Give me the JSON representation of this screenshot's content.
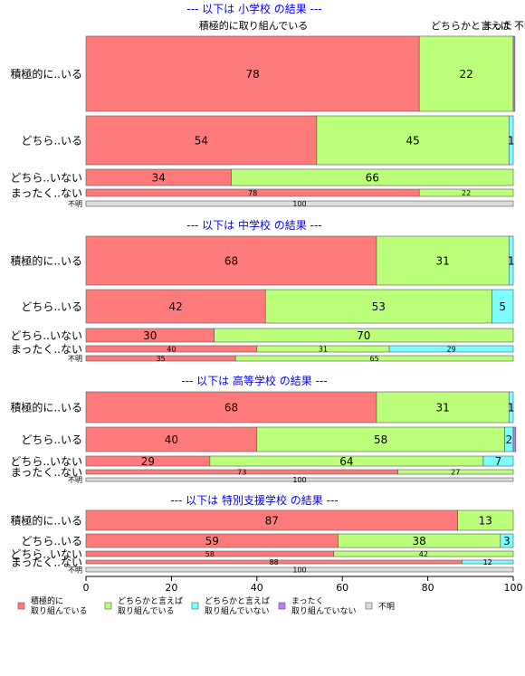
{
  "chart_data": {
    "type": "bar",
    "orientation": "horizontal",
    "stacked": true,
    "variable_bar_width": true,
    "xlim": [
      0,
      100
    ],
    "x_ticks": [
      "0",
      "20",
      "40",
      "60",
      "80",
      "100"
    ],
    "top_labels": [
      "積極的に取り組んでいる",
      "どちらかと言えば",
      "まった",
      "不明"
    ],
    "series": [
      {
        "name": "積極的に\n取り組んでいる",
        "color": "#FF7B7B"
      },
      {
        "name": "どちらかと言えば\n取り組んでいる",
        "color": "#BBFF7B"
      },
      {
        "name": "どちらかと言えば\n取り組んでいない",
        "color": "#7BFFFF"
      },
      {
        "name": "まったく\n取り組んでいない",
        "color": "#BB7BFF"
      },
      {
        "name": "不明",
        "color": "#DDDDDD"
      }
    ],
    "panels": [
      {
        "title": "--- 以下は 小学校 の結果 ---",
        "rows": [
          {
            "label": "積極的に..いる",
            "values": [
              78,
              22,
              0,
              0.4,
              0
            ],
            "labels": [
              "78",
              "22",
              "",
              "",
              ""
            ]
          },
          {
            "label": "どちら..いる",
            "values": [
              54,
              45,
              1,
              0,
              0
            ],
            "labels": [
              "54",
              "45",
              "1",
              "",
              ""
            ]
          },
          {
            "label": "どちら..いない",
            "values": [
              34,
              66,
              0,
              0,
              0
            ],
            "labels": [
              "34",
              "66",
              "",
              "",
              ""
            ]
          },
          {
            "label": "まったく..ない",
            "values": [
              78,
              22,
              0,
              0,
              0
            ],
            "labels": [
              "78",
              "22",
              "",
              "",
              ""
            ]
          },
          {
            "label": "不明",
            "values": [
              0,
              0,
              0,
              0,
              100
            ],
            "labels": [
              "",
              "",
              "",
              "",
              "100"
            ]
          }
        ]
      },
      {
        "title": "--- 以下は 中学校 の結果 ---",
        "rows": [
          {
            "label": "積極的に..いる",
            "values": [
              68,
              31,
              1,
              0,
              0
            ],
            "labels": [
              "68",
              "31",
              "1",
              "",
              ""
            ]
          },
          {
            "label": "どちら..いる",
            "values": [
              42,
              53,
              5,
              0,
              0
            ],
            "labels": [
              "42",
              "53",
              "5",
              "",
              ""
            ]
          },
          {
            "label": "どちら..いない",
            "values": [
              30,
              70,
              0,
              0,
              0
            ],
            "labels": [
              "30",
              "70",
              "",
              "",
              ""
            ]
          },
          {
            "label": "まったく..ない",
            "values": [
              40,
              31,
              29,
              0,
              0
            ],
            "labels": [
              "40",
              "31",
              "29",
              "",
              ""
            ]
          },
          {
            "label": "不明",
            "values": [
              35,
              65,
              0,
              0,
              0
            ],
            "labels": [
              "35",
              "65",
              "",
              "",
              ""
            ]
          }
        ]
      },
      {
        "title": "--- 以下は 高等学校 の結果 ---",
        "rows": [
          {
            "label": "積極的に..いる",
            "values": [
              68,
              31,
              1,
              0,
              0
            ],
            "labels": [
              "68",
              "31",
              "1",
              "",
              ""
            ]
          },
          {
            "label": "どちら..いる",
            "values": [
              40,
              58,
              2,
              0.6,
              0
            ],
            "labels": [
              "40",
              "58",
              "2",
              "",
              ""
            ]
          },
          {
            "label": "どちら..いない",
            "values": [
              29,
              64,
              7,
              0,
              0
            ],
            "labels": [
              "29",
              "64",
              "7",
              "",
              ""
            ]
          },
          {
            "label": "まったく..ない",
            "values": [
              73,
              27,
              0,
              0,
              0
            ],
            "labels": [
              "73",
              "27",
              "",
              "",
              ""
            ]
          },
          {
            "label": "不明",
            "values": [
              0,
              0,
              0,
              0,
              100
            ],
            "labels": [
              "",
              "",
              "",
              "",
              "100"
            ]
          }
        ]
      },
      {
        "title": "--- 以下は 特別支援学校 の結果 ---",
        "rows": [
          {
            "label": "積極的に..いる",
            "values": [
              87,
              13,
              0,
              0,
              0
            ],
            "labels": [
              "87",
              "13",
              "",
              "",
              ""
            ]
          },
          {
            "label": "どちら..いる",
            "values": [
              59,
              38,
              3,
              0,
              0
            ],
            "labels": [
              "59",
              "38",
              "3",
              "",
              ""
            ]
          },
          {
            "label": "どちら..いない",
            "values": [
              58,
              42,
              0,
              0,
              0
            ],
            "labels": [
              "58",
              "42",
              "",
              "",
              ""
            ]
          },
          {
            "label": "まったく..ない",
            "values": [
              88,
              0,
              12,
              0,
              0
            ],
            "labels": [
              "88",
              "",
              "12",
              "",
              ""
            ]
          },
          {
            "label": "不明",
            "values": [
              0,
              0,
              0,
              0,
              100
            ],
            "labels": [
              "",
              "",
              "",
              "",
              "100"
            ]
          }
        ]
      }
    ]
  }
}
